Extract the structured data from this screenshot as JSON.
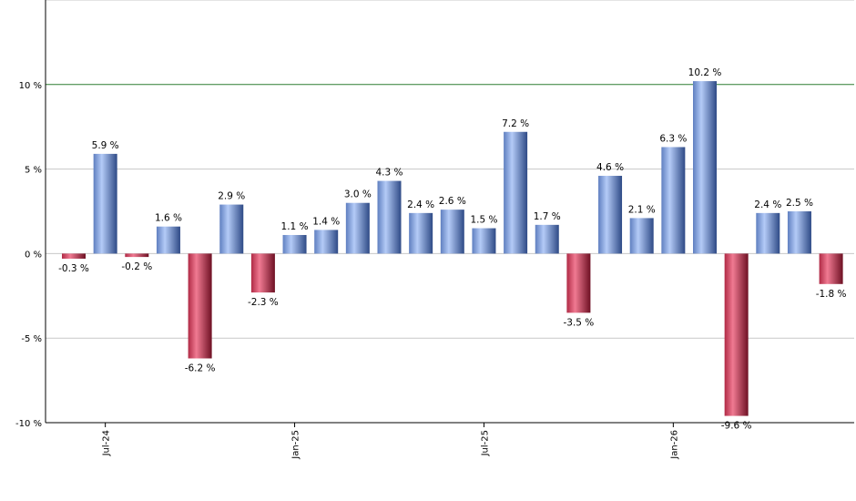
{
  "chart_data": {
    "type": "bar",
    "title": "",
    "xlabel": "",
    "ylabel": "",
    "ylim": [
      -10,
      15
    ],
    "y_ticks": [
      -10,
      -5,
      0,
      5,
      10
    ],
    "y_tick_labels": [
      "-10 %",
      "-5 %",
      "0 %",
      "5 %",
      "10 %"
    ],
    "reference_line": {
      "value": 10,
      "color": "#2e7d32"
    },
    "grid": true,
    "values": [
      -0.3,
      5.9,
      -0.2,
      1.6,
      -6.2,
      2.9,
      -2.3,
      1.1,
      1.4,
      3.0,
      4.3,
      2.4,
      2.6,
      1.5,
      7.2,
      1.7,
      -3.5,
      4.6,
      2.1,
      6.3,
      10.2,
      -9.6,
      2.4,
      2.5,
      -1.8
    ],
    "value_labels": [
      "-0.3 %",
      "5.9 %",
      "-0.2 %",
      "1.6 %",
      "-6.2 %",
      "2.9 %",
      "-2.3 %",
      "1.1 %",
      "1.4 %",
      "3.0 %",
      "4.3 %",
      "2.4 %",
      "2.6 %",
      "1.5 %",
      "7.2 %",
      "1.7 %",
      "-3.5 %",
      "4.6 %",
      "2.1 %",
      "6.3 %",
      "10.2 %",
      "-9.6 %",
      "2.4 %",
      "2.5 %",
      "-1.8 %"
    ],
    "x_tick_labels": [
      {
        "index": 1,
        "label": "Jul-24"
      },
      {
        "index": 7,
        "label": "Jan-25"
      },
      {
        "index": 13,
        "label": "Jul-25"
      },
      {
        "index": 19,
        "label": "Jan-26"
      }
    ],
    "colors": {
      "positive": "#7f9fe0",
      "negative": "#c8324e",
      "grid": "#c8c8c8"
    }
  }
}
